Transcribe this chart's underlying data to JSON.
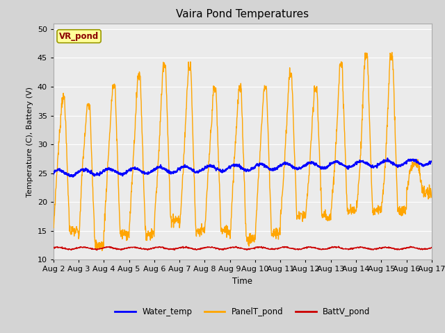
{
  "title": "Vaira Pond Temperatures",
  "xlabel": "Time",
  "ylabel": "Temperature (C), Battery (V)",
  "ylim": [
    10,
    51
  ],
  "yticks": [
    10,
    15,
    20,
    25,
    30,
    35,
    40,
    45,
    50
  ],
  "x_tick_labels": [
    "Aug 2",
    "Aug 3",
    "Aug 4",
    "Aug 5",
    "Aug 6",
    "Aug 7",
    "Aug 8",
    "Aug 9",
    "Aug 10",
    "Aug 11",
    "Aug 12",
    "Aug 13",
    "Aug 14",
    "Aug 15",
    "Aug 16",
    "Aug 17"
  ],
  "site_label": "VR_pond",
  "site_label_color": "#8B0000",
  "site_label_bg": "#FFFF99",
  "site_label_border": "#999900",
  "water_temp_color": "#0000FF",
  "panel_temp_color": "#FFA500",
  "batt_color": "#CC0000",
  "plot_bg_color": "#EBEBEB",
  "fig_bg_color": "#D4D4D4",
  "grid_color": "#FFFFFF",
  "legend_entries": [
    "Water_temp",
    "PanelT_pond",
    "BattV_pond"
  ]
}
